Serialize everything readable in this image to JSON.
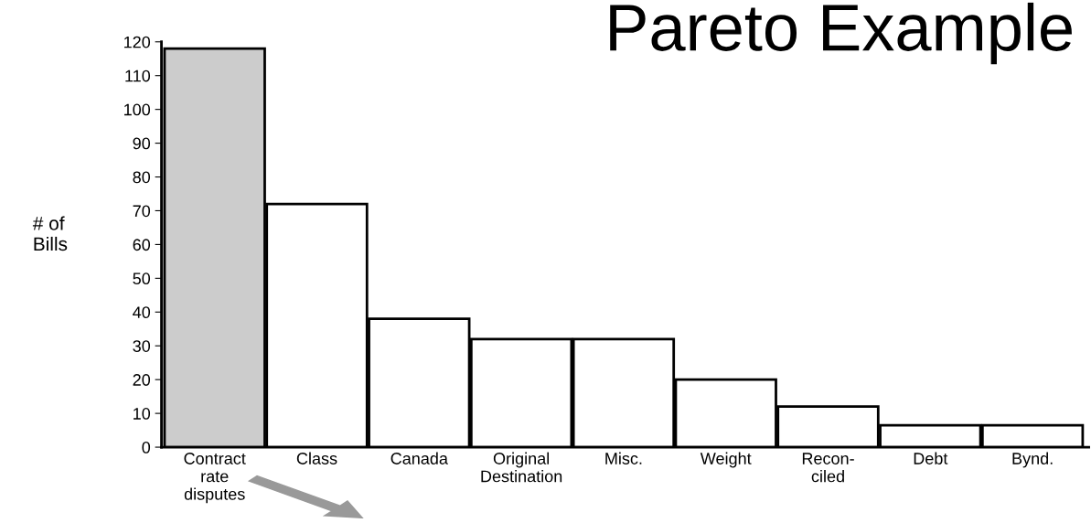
{
  "chart_data": {
    "type": "bar",
    "title": "Pareto Example",
    "ylabel": "# of\nBills",
    "categories": [
      "Contract\nrate\ndisputes",
      "Class",
      "Canada",
      "Original\nDestination",
      "Misc.",
      "Weight",
      "Recon-\nciled",
      "Debt",
      "Bynd."
    ],
    "values": [
      118,
      72,
      38,
      32,
      32,
      20,
      12,
      6.5,
      6.5
    ],
    "colors": [
      "#cccccc",
      "#ffffff",
      "#ffffff",
      "#ffffff",
      "#ffffff",
      "#ffffff",
      "#ffffff",
      "#ffffff",
      "#ffffff"
    ],
    "ylim": [
      0,
      120
    ],
    "yticks": [
      0,
      10,
      20,
      30,
      40,
      50,
      60,
      70,
      80,
      90,
      100,
      110,
      120
    ],
    "grid": false,
    "legend": false
  }
}
